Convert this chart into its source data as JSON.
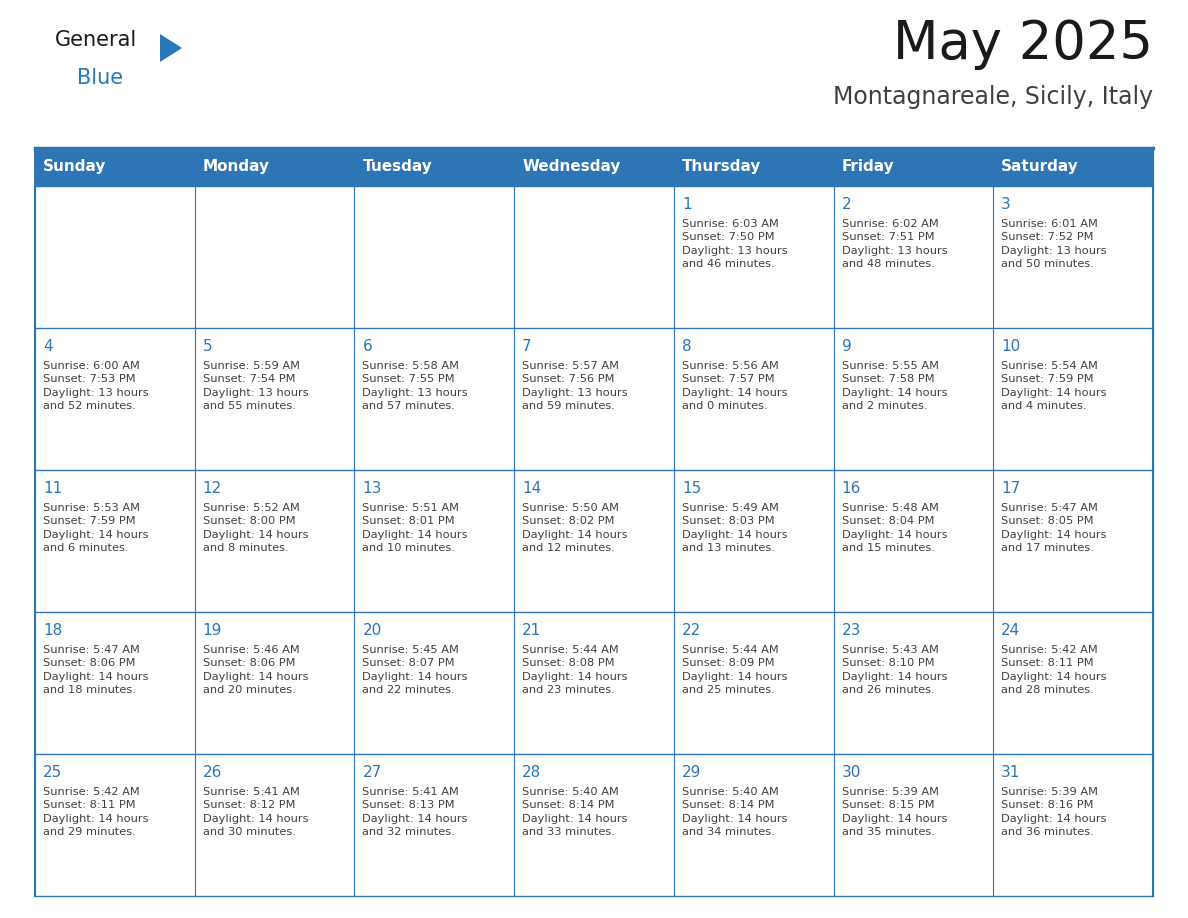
{
  "title": "May 2025",
  "subtitle": "Montagnareale, Sicily, Italy",
  "header_color": "#2E75B6",
  "header_text_color": "#FFFFFF",
  "day_headers": [
    "Sunday",
    "Monday",
    "Tuesday",
    "Wednesday",
    "Thursday",
    "Friday",
    "Saturday"
  ],
  "grid_line_color": "#2E75B6",
  "day_text_color": "#2E75B6",
  "info_text_color": "#404040",
  "logo_general_color": "#1a1a1a",
  "logo_blue_color": "#2778B5",
  "title_color": "#1a1a1a",
  "subtitle_color": "#404040",
  "title_fontsize": 38,
  "subtitle_fontsize": 17,
  "header_fontsize": 11,
  "day_num_fontsize": 11,
  "info_fontsize": 8.2,
  "weeks": [
    [
      {
        "day": "",
        "info": ""
      },
      {
        "day": "",
        "info": ""
      },
      {
        "day": "",
        "info": ""
      },
      {
        "day": "",
        "info": ""
      },
      {
        "day": "1",
        "info": "Sunrise: 6:03 AM\nSunset: 7:50 PM\nDaylight: 13 hours\nand 46 minutes."
      },
      {
        "day": "2",
        "info": "Sunrise: 6:02 AM\nSunset: 7:51 PM\nDaylight: 13 hours\nand 48 minutes."
      },
      {
        "day": "3",
        "info": "Sunrise: 6:01 AM\nSunset: 7:52 PM\nDaylight: 13 hours\nand 50 minutes."
      }
    ],
    [
      {
        "day": "4",
        "info": "Sunrise: 6:00 AM\nSunset: 7:53 PM\nDaylight: 13 hours\nand 52 minutes."
      },
      {
        "day": "5",
        "info": "Sunrise: 5:59 AM\nSunset: 7:54 PM\nDaylight: 13 hours\nand 55 minutes."
      },
      {
        "day": "6",
        "info": "Sunrise: 5:58 AM\nSunset: 7:55 PM\nDaylight: 13 hours\nand 57 minutes."
      },
      {
        "day": "7",
        "info": "Sunrise: 5:57 AM\nSunset: 7:56 PM\nDaylight: 13 hours\nand 59 minutes."
      },
      {
        "day": "8",
        "info": "Sunrise: 5:56 AM\nSunset: 7:57 PM\nDaylight: 14 hours\nand 0 minutes."
      },
      {
        "day": "9",
        "info": "Sunrise: 5:55 AM\nSunset: 7:58 PM\nDaylight: 14 hours\nand 2 minutes."
      },
      {
        "day": "10",
        "info": "Sunrise: 5:54 AM\nSunset: 7:59 PM\nDaylight: 14 hours\nand 4 minutes."
      }
    ],
    [
      {
        "day": "11",
        "info": "Sunrise: 5:53 AM\nSunset: 7:59 PM\nDaylight: 14 hours\nand 6 minutes."
      },
      {
        "day": "12",
        "info": "Sunrise: 5:52 AM\nSunset: 8:00 PM\nDaylight: 14 hours\nand 8 minutes."
      },
      {
        "day": "13",
        "info": "Sunrise: 5:51 AM\nSunset: 8:01 PM\nDaylight: 14 hours\nand 10 minutes."
      },
      {
        "day": "14",
        "info": "Sunrise: 5:50 AM\nSunset: 8:02 PM\nDaylight: 14 hours\nand 12 minutes."
      },
      {
        "day": "15",
        "info": "Sunrise: 5:49 AM\nSunset: 8:03 PM\nDaylight: 14 hours\nand 13 minutes."
      },
      {
        "day": "16",
        "info": "Sunrise: 5:48 AM\nSunset: 8:04 PM\nDaylight: 14 hours\nand 15 minutes."
      },
      {
        "day": "17",
        "info": "Sunrise: 5:47 AM\nSunset: 8:05 PM\nDaylight: 14 hours\nand 17 minutes."
      }
    ],
    [
      {
        "day": "18",
        "info": "Sunrise: 5:47 AM\nSunset: 8:06 PM\nDaylight: 14 hours\nand 18 minutes."
      },
      {
        "day": "19",
        "info": "Sunrise: 5:46 AM\nSunset: 8:06 PM\nDaylight: 14 hours\nand 20 minutes."
      },
      {
        "day": "20",
        "info": "Sunrise: 5:45 AM\nSunset: 8:07 PM\nDaylight: 14 hours\nand 22 minutes."
      },
      {
        "day": "21",
        "info": "Sunrise: 5:44 AM\nSunset: 8:08 PM\nDaylight: 14 hours\nand 23 minutes."
      },
      {
        "day": "22",
        "info": "Sunrise: 5:44 AM\nSunset: 8:09 PM\nDaylight: 14 hours\nand 25 minutes."
      },
      {
        "day": "23",
        "info": "Sunrise: 5:43 AM\nSunset: 8:10 PM\nDaylight: 14 hours\nand 26 minutes."
      },
      {
        "day": "24",
        "info": "Sunrise: 5:42 AM\nSunset: 8:11 PM\nDaylight: 14 hours\nand 28 minutes."
      }
    ],
    [
      {
        "day": "25",
        "info": "Sunrise: 5:42 AM\nSunset: 8:11 PM\nDaylight: 14 hours\nand 29 minutes."
      },
      {
        "day": "26",
        "info": "Sunrise: 5:41 AM\nSunset: 8:12 PM\nDaylight: 14 hours\nand 30 minutes."
      },
      {
        "day": "27",
        "info": "Sunrise: 5:41 AM\nSunset: 8:13 PM\nDaylight: 14 hours\nand 32 minutes."
      },
      {
        "day": "28",
        "info": "Sunrise: 5:40 AM\nSunset: 8:14 PM\nDaylight: 14 hours\nand 33 minutes."
      },
      {
        "day": "29",
        "info": "Sunrise: 5:40 AM\nSunset: 8:14 PM\nDaylight: 14 hours\nand 34 minutes."
      },
      {
        "day": "30",
        "info": "Sunrise: 5:39 AM\nSunset: 8:15 PM\nDaylight: 14 hours\nand 35 minutes."
      },
      {
        "day": "31",
        "info": "Sunrise: 5:39 AM\nSunset: 8:16 PM\nDaylight: 14 hours\nand 36 minutes."
      }
    ]
  ]
}
